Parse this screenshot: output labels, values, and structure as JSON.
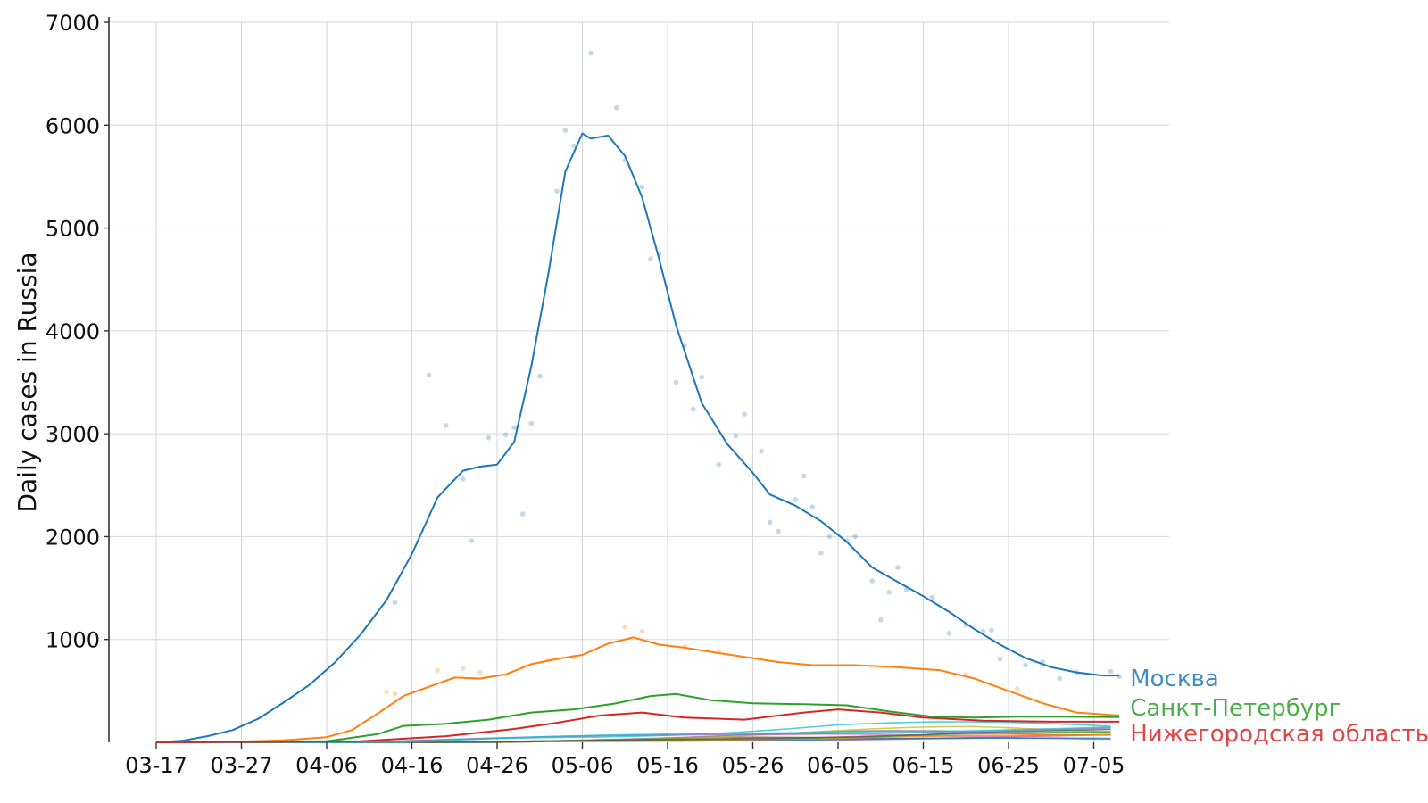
{
  "chart_data": {
    "type": "line",
    "ylabel": "Daily cases in Russia",
    "ylim": [
      0,
      7000
    ],
    "yticks": [
      1000,
      2000,
      3000,
      4000,
      5000,
      6000,
      7000
    ],
    "x_range": [
      "03-17",
      "07-08"
    ],
    "x_ticks": [
      "03-17",
      "03-27",
      "04-06",
      "04-16",
      "04-26",
      "05-06",
      "05-16",
      "05-26",
      "06-05",
      "06-15",
      "06-25",
      "07-05"
    ],
    "grid": true,
    "colors": {
      "moscow": "#1f77b4",
      "moscow_region": "#ff7f0e",
      "spb": "#2ca02c",
      "nizhny": "#d62728"
    },
    "series": [
      {
        "key": "moscow",
        "name": "Москва",
        "color": "#1f77b4",
        "smoothed": [
          [
            "03-17",
            0
          ],
          [
            "03-20",
            15
          ],
          [
            "03-23",
            60
          ],
          [
            "03-26",
            120
          ],
          [
            "03-29",
            230
          ],
          [
            "04-01",
            390
          ],
          [
            "04-04",
            560
          ],
          [
            "04-07",
            780
          ],
          [
            "04-10",
            1050
          ],
          [
            "04-13",
            1380
          ],
          [
            "04-16",
            1830
          ],
          [
            "04-19",
            2380
          ],
          [
            "04-22",
            2640
          ],
          [
            "04-24",
            2680
          ],
          [
            "04-26",
            2700
          ],
          [
            "04-28",
            2920
          ],
          [
            "04-30",
            3650
          ],
          [
            "05-02",
            4550
          ],
          [
            "05-04",
            5550
          ],
          [
            "05-06",
            5920
          ],
          [
            "05-07",
            5870
          ],
          [
            "05-09",
            5900
          ],
          [
            "05-11",
            5700
          ],
          [
            "05-13",
            5300
          ],
          [
            "05-15",
            4700
          ],
          [
            "05-17",
            4050
          ],
          [
            "05-20",
            3300
          ],
          [
            "05-23",
            2900
          ],
          [
            "05-26",
            2620
          ],
          [
            "05-28",
            2410
          ],
          [
            "05-31",
            2300
          ],
          [
            "06-03",
            2150
          ],
          [
            "06-06",
            1950
          ],
          [
            "06-09",
            1700
          ],
          [
            "06-12",
            1560
          ],
          [
            "06-15",
            1420
          ],
          [
            "06-18",
            1270
          ],
          [
            "06-21",
            1100
          ],
          [
            "06-24",
            950
          ],
          [
            "06-27",
            820
          ],
          [
            "06-30",
            730
          ],
          [
            "07-03",
            680
          ],
          [
            "07-06",
            650
          ],
          [
            "07-08",
            650
          ]
        ],
        "daily": [
          [
            "04-14",
            1360
          ],
          [
            "04-18",
            3570
          ],
          [
            "04-20",
            3080
          ],
          [
            "04-22",
            2560
          ],
          [
            "04-23",
            1960
          ],
          [
            "04-25",
            2960
          ],
          [
            "04-27",
            2990
          ],
          [
            "04-28",
            3060
          ],
          [
            "04-29",
            2220
          ],
          [
            "04-30",
            3100
          ],
          [
            "05-01",
            3560
          ],
          [
            "05-03",
            5360
          ],
          [
            "05-04",
            5950
          ],
          [
            "05-05",
            5800
          ],
          [
            "05-07",
            6700
          ],
          [
            "05-10",
            6170
          ],
          [
            "05-11",
            5660
          ],
          [
            "05-13",
            5400
          ],
          [
            "05-14",
            4700
          ],
          [
            "05-15",
            4750
          ],
          [
            "05-17",
            3500
          ],
          [
            "05-18",
            3860
          ],
          [
            "05-19",
            3240
          ],
          [
            "05-20",
            3550
          ],
          [
            "05-22",
            2700
          ],
          [
            "05-24",
            2980
          ],
          [
            "05-25",
            3190
          ],
          [
            "05-27",
            2830
          ],
          [
            "05-28",
            2140
          ],
          [
            "05-29",
            2050
          ],
          [
            "05-31",
            2360
          ],
          [
            "06-01",
            2590
          ],
          [
            "06-02",
            2290
          ],
          [
            "06-03",
            1840
          ],
          [
            "06-04",
            2000
          ],
          [
            "06-06",
            1960
          ],
          [
            "06-07",
            2000
          ],
          [
            "06-09",
            1570
          ],
          [
            "06-10",
            1190
          ],
          [
            "06-11",
            1460
          ],
          [
            "06-12",
            1700
          ],
          [
            "06-13",
            1480
          ],
          [
            "06-16",
            1410
          ],
          [
            "06-18",
            1060
          ],
          [
            "06-20",
            1140
          ],
          [
            "06-22",
            1080
          ],
          [
            "06-23",
            1090
          ],
          [
            "06-24",
            810
          ],
          [
            "06-27",
            750
          ],
          [
            "06-29",
            780
          ],
          [
            "07-01",
            620
          ],
          [
            "07-03",
            680
          ],
          [
            "07-07",
            690
          ],
          [
            "07-08",
            640
          ]
        ]
      },
      {
        "key": "moscow_region",
        "name": "",
        "color": "#ff7f0e",
        "smoothed": [
          [
            "03-17",
            0
          ],
          [
            "03-26",
            5
          ],
          [
            "04-01",
            20
          ],
          [
            "04-06",
            50
          ],
          [
            "04-09",
            120
          ],
          [
            "04-12",
            280
          ],
          [
            "04-15",
            450
          ],
          [
            "04-18",
            540
          ],
          [
            "04-21",
            630
          ],
          [
            "04-24",
            620
          ],
          [
            "04-27",
            660
          ],
          [
            "04-30",
            760
          ],
          [
            "05-03",
            810
          ],
          [
            "05-06",
            850
          ],
          [
            "05-09",
            960
          ],
          [
            "05-12",
            1020
          ],
          [
            "05-15",
            950
          ],
          [
            "05-18",
            920
          ],
          [
            "05-21",
            880
          ],
          [
            "05-25",
            830
          ],
          [
            "05-29",
            780
          ],
          [
            "06-02",
            750
          ],
          [
            "06-07",
            750
          ],
          [
            "06-12",
            730
          ],
          [
            "06-17",
            700
          ],
          [
            "06-21",
            620
          ],
          [
            "06-25",
            500
          ],
          [
            "06-29",
            380
          ],
          [
            "07-03",
            290
          ],
          [
            "07-08",
            260
          ]
        ],
        "daily": [
          [
            "04-13",
            490
          ],
          [
            "04-14",
            470
          ],
          [
            "04-19",
            700
          ],
          [
            "04-22",
            720
          ],
          [
            "04-24",
            680
          ],
          [
            "05-02",
            800
          ],
          [
            "05-05",
            830
          ],
          [
            "05-11",
            1120
          ],
          [
            "05-13",
            1080
          ],
          [
            "05-18",
            930
          ],
          [
            "05-22",
            890
          ],
          [
            "06-20",
            660
          ],
          [
            "06-26",
            520
          ],
          [
            "07-01",
            330
          ]
        ]
      },
      {
        "key": "spb",
        "name": "Санкт-Петербург",
        "color": "#2ca02c",
        "smoothed": [
          [
            "03-17",
            0
          ],
          [
            "04-06",
            10
          ],
          [
            "04-12",
            80
          ],
          [
            "04-15",
            160
          ],
          [
            "04-20",
            180
          ],
          [
            "04-25",
            220
          ],
          [
            "04-30",
            290
          ],
          [
            "05-05",
            320
          ],
          [
            "05-10",
            380
          ],
          [
            "05-14",
            450
          ],
          [
            "05-17",
            470
          ],
          [
            "05-21",
            410
          ],
          [
            "05-26",
            380
          ],
          [
            "06-01",
            370
          ],
          [
            "06-06",
            360
          ],
          [
            "06-11",
            300
          ],
          [
            "06-16",
            250
          ],
          [
            "06-21",
            240
          ],
          [
            "06-26",
            250
          ],
          [
            "07-01",
            250
          ],
          [
            "07-08",
            245
          ]
        ],
        "daily": []
      },
      {
        "key": "nizhny",
        "name": "Нижегородская область",
        "color": "#d62728",
        "smoothed": [
          [
            "03-17",
            0
          ],
          [
            "04-10",
            10
          ],
          [
            "04-20",
            60
          ],
          [
            "04-28",
            130
          ],
          [
            "05-03",
            190
          ],
          [
            "05-08",
            260
          ],
          [
            "05-13",
            290
          ],
          [
            "05-18",
            240
          ],
          [
            "05-25",
            220
          ],
          [
            "06-01",
            290
          ],
          [
            "06-05",
            320
          ],
          [
            "06-10",
            290
          ],
          [
            "06-15",
            240
          ],
          [
            "06-22",
            210
          ],
          [
            "06-30",
            200
          ],
          [
            "07-08",
            200
          ]
        ],
        "daily": []
      }
    ]
  }
}
